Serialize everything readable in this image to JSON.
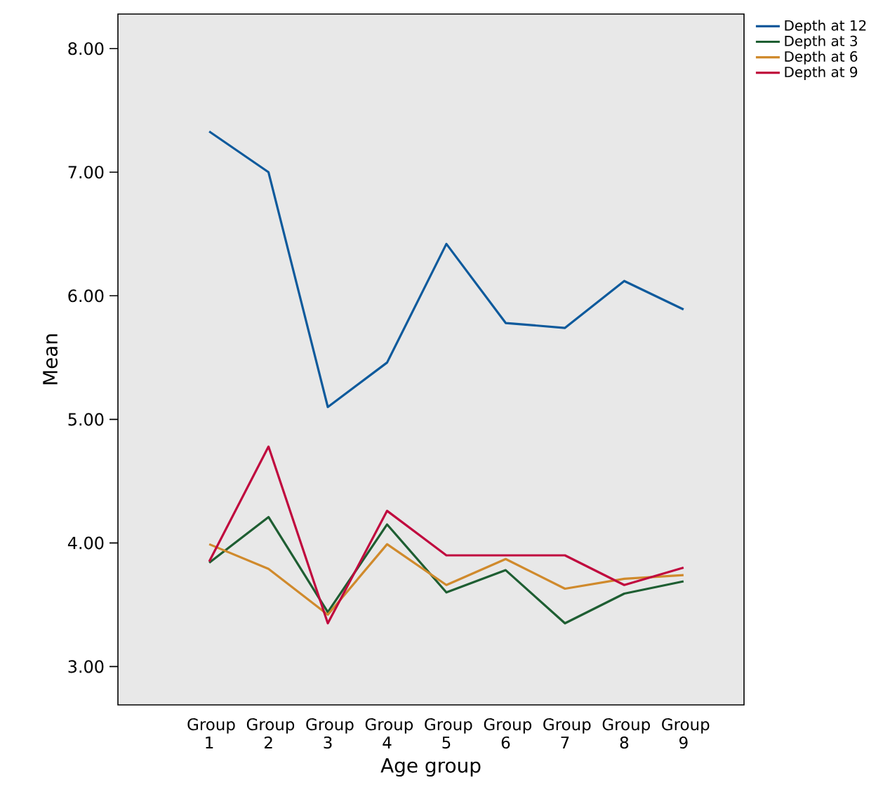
{
  "chart_data": {
    "type": "line",
    "xlabel": "Age group",
    "ylabel": "Mean",
    "categories": [
      "Group 1",
      "Group 2",
      "Group 3",
      "Group 4",
      "Group 5",
      "Group 6",
      "Group 7",
      "Group 8",
      "Group 9"
    ],
    "series": [
      {
        "name": "Depth at 12",
        "color": "#0e5a9c",
        "values": [
          7.33,
          7.0,
          5.1,
          5.46,
          6.42,
          5.78,
          5.74,
          6.12,
          5.89
        ]
      },
      {
        "name": "Depth at 3",
        "color": "#1e5e32",
        "values": [
          3.84,
          4.21,
          3.44,
          4.15,
          3.6,
          3.78,
          3.35,
          3.59,
          3.69
        ]
      },
      {
        "name": "Depth at 6",
        "color": "#d08a2c",
        "values": [
          3.99,
          3.79,
          3.42,
          3.99,
          3.66,
          3.87,
          3.63,
          3.71,
          3.74
        ]
      },
      {
        "name": "Depth at 9",
        "color": "#c0093e",
        "values": [
          3.85,
          4.78,
          3.35,
          4.26,
          3.9,
          3.9,
          3.9,
          3.66,
          3.8
        ]
      }
    ],
    "ylim": [
      2.69,
      8.28
    ],
    "yticks": [
      {
        "value": 3,
        "label": "3.00"
      },
      {
        "value": 4,
        "label": "4.00"
      },
      {
        "value": 5,
        "label": "5.00"
      },
      {
        "value": 6,
        "label": "6.00"
      },
      {
        "value": 7,
        "label": "7.00"
      },
      {
        "value": 8,
        "label": "8.00"
      }
    ],
    "legend": "top right",
    "grid": false,
    "marker": "none",
    "line_style": "solid"
  }
}
